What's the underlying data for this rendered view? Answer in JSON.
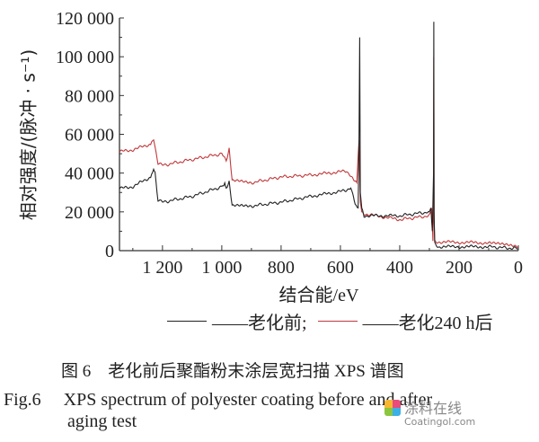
{
  "chart_data": {
    "type": "line",
    "title": "",
    "xlabel": "结合能/eV",
    "ylabel": "相对强度/(脉冲 · s⁻¹)",
    "xlim": [
      1345,
      0
    ],
    "ylim": [
      0,
      120000
    ],
    "x_reversed": true,
    "grid": false,
    "xticks": [
      1200,
      1000,
      800,
      600,
      400,
      200,
      0
    ],
    "xtick_labels": [
      "1 200",
      "1 000",
      "800",
      "600",
      "400",
      "200",
      "0"
    ],
    "yticks": [
      0,
      20000,
      40000,
      60000,
      80000,
      100000,
      120000
    ],
    "ytick_labels": [
      "0",
      "20 000",
      "40 000",
      "60 000",
      "80 000",
      "100 000",
      "120 000"
    ],
    "legend_placement": "bottom",
    "series": [
      {
        "name": "老化前",
        "color": "#222222",
        "x": [
          1345,
          1300,
          1240,
          1230,
          1225,
          1215,
          1200,
          1100,
          1000,
          990,
          985,
          975,
          965,
          900,
          800,
          700,
          580,
          565,
          550,
          540,
          537,
          535,
          533,
          528,
          520,
          400,
          300,
          295,
          290,
          286,
          285,
          284,
          282,
          270,
          100,
          0
        ],
        "y": [
          32000,
          33000,
          38000,
          42000,
          40000,
          26000,
          25000,
          28000,
          33000,
          35000,
          32000,
          36000,
          23000,
          23000,
          25000,
          28000,
          31000,
          33000,
          24000,
          22000,
          60000,
          110000,
          30000,
          22000,
          18000,
          18000,
          20000,
          22000,
          10000,
          40000,
          118000,
          20000,
          4000,
          2000,
          2000,
          1000
        ]
      },
      {
        "name": "老化240 h后",
        "color": "#c0393b",
        "x": [
          1345,
          1300,
          1240,
          1230,
          1215,
          1200,
          1100,
          1000,
          985,
          975,
          965,
          900,
          800,
          700,
          580,
          565,
          545,
          537,
          533,
          528,
          520,
          400,
          300,
          292,
          288,
          286,
          285,
          284,
          282,
          270,
          100,
          50,
          0
        ],
        "y": [
          51000,
          52000,
          55000,
          58000,
          45000,
          44000,
          47000,
          50000,
          46000,
          53000,
          36000,
          35000,
          38000,
          39000,
          41000,
          39000,
          35000,
          57000,
          25000,
          20000,
          19000,
          16000,
          18000,
          22000,
          5000,
          35000,
          100000,
          15000,
          5000,
          4500,
          4000,
          3000,
          2000
        ]
      }
    ]
  },
  "legend": {
    "before": "——老化前;",
    "after": "——老化240 h后"
  },
  "caption": {
    "cn": "图 6　老化前后聚酯粉末涂层宽扫描 XPS 谱图",
    "en_line1": "Fig.6　 XPS spectrum of polyester coating before and after",
    "en_line2": "aging test"
  },
  "watermark": {
    "cn": "涂料在线",
    "en": "Coatingol.com"
  }
}
